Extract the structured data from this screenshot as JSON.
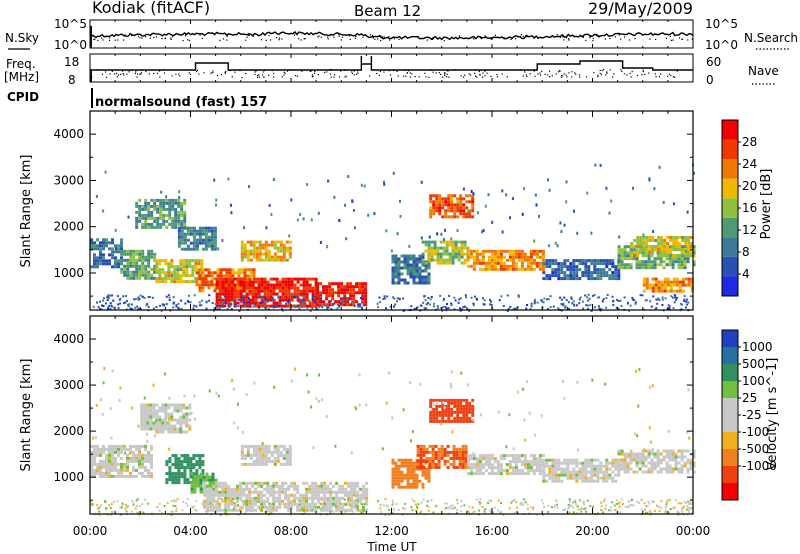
{
  "header": {
    "station": "Kodiak (fitACF)",
    "beam": "Beam 12",
    "date": "29/May/2009"
  },
  "labels": {
    "nsky": "N.Sky",
    "nsearch": "N.Search",
    "freq_line1": "Freq.",
    "freq_line2": "[MHz]",
    "nave": "Nave",
    "cpid": "CPID",
    "cpid_value": "normalsound (fast) 157"
  },
  "strip_ticks": {
    "noise_left": [
      "10^5",
      "10^0"
    ],
    "noise_right": [
      "10^5",
      "10^0"
    ],
    "freq_left": [
      "18",
      "8"
    ],
    "nave_right": [
      "60",
      "0"
    ]
  },
  "colors": {
    "power": [
      "#1f2ae0",
      "#2a50b8",
      "#3d7a9a",
      "#4f9a72",
      "#8fc040",
      "#f0b800",
      "#f07800",
      "#f03800",
      "#f00000"
    ],
    "velocity": [
      "#2040c0",
      "#2870a0",
      "#309060",
      "#70c040",
      "#c8c8c8",
      "#c8c8c8",
      "#f0b020",
      "#f08020",
      "#f04010",
      "#f00000"
    ]
  },
  "chart_data": [
    {
      "type": "heatmap",
      "name": "power",
      "ylabel": "Slant Range [km]",
      "yticks": [
        1000,
        2000,
        3000,
        4000
      ],
      "ylim": [
        200,
        4500
      ],
      "xlim": [
        0,
        24
      ],
      "colorbar": {
        "label": "Power [dB]",
        "ticks": [
          4,
          8,
          12,
          16,
          20,
          24,
          28
        ],
        "range": [
          0,
          32
        ]
      },
      "regions": [
        {
          "t": [
            0,
            1.2
          ],
          "r": [
            1150,
            1750
          ],
          "v": 8
        },
        {
          "t": [
            1.2,
            2.6
          ],
          "r": [
            900,
            1500
          ],
          "v": 13
        },
        {
          "t": [
            1.8,
            3.8
          ],
          "r": [
            2000,
            2600
          ],
          "v": 12
        },
        {
          "t": [
            2.6,
            4.5
          ],
          "r": [
            800,
            1300
          ],
          "v": 18
        },
        {
          "t": [
            4.2,
            6.5
          ],
          "r": [
            600,
            1100
          ],
          "v": 24
        },
        {
          "t": [
            5.0,
            9.0
          ],
          "r": [
            300,
            900
          ],
          "v": 29
        },
        {
          "t": [
            9.0,
            11.0
          ],
          "r": [
            300,
            800
          ],
          "v": 30
        },
        {
          "t": [
            6.0,
            8.0
          ],
          "r": [
            1300,
            1700
          ],
          "v": 20
        },
        {
          "t": [
            3.5,
            5.0
          ],
          "r": [
            1500,
            2000
          ],
          "v": 10
        },
        {
          "t": [
            12.0,
            13.5
          ],
          "r": [
            800,
            1400
          ],
          "v": 9
        },
        {
          "t": [
            13.2,
            15.0
          ],
          "r": [
            1200,
            1700
          ],
          "v": 16
        },
        {
          "t": [
            13.5,
            15.2
          ],
          "r": [
            2200,
            2700
          ],
          "v": 25
        },
        {
          "t": [
            15.0,
            18.0
          ],
          "r": [
            1100,
            1500
          ],
          "v": 22
        },
        {
          "t": [
            18.0,
            21.0
          ],
          "r": [
            900,
            1300
          ],
          "v": 7
        },
        {
          "t": [
            21.0,
            24.0
          ],
          "r": [
            1100,
            1600
          ],
          "v": 14
        },
        {
          "t": [
            22.0,
            24.0
          ],
          "r": [
            600,
            900
          ],
          "v": 22
        },
        {
          "t": [
            21.5,
            24.0
          ],
          "r": [
            1400,
            1800
          ],
          "v": 18
        }
      ]
    },
    {
      "type": "heatmap",
      "name": "velocity",
      "xlabel": "Time UT",
      "ylabel": "Slant Range [km]",
      "yticks": [
        1000,
        2000,
        3000,
        4000
      ],
      "ylim": [
        200,
        4500
      ],
      "xticks": [
        "00:00",
        "04:00",
        "08:00",
        "12:00",
        "16:00",
        "20:00",
        "00:00"
      ],
      "xlim": [
        0,
        24
      ],
      "colorbar": {
        "label": "Velocity [m s^-1]",
        "ticks": [
          "1000",
          "500",
          "100",
          "25",
          "-25",
          "-100",
          "-500",
          "-1000"
        ]
      },
      "regions": [
        {
          "t": [
            0,
            2.5
          ],
          "r": [
            1000,
            1700
          ],
          "v": 0
        },
        {
          "t": [
            2.0,
            4.0
          ],
          "r": [
            2000,
            2600
          ],
          "v": 0
        },
        {
          "t": [
            3.0,
            4.5
          ],
          "r": [
            900,
            1500
          ],
          "v": 300
        },
        {
          "t": [
            4.0,
            5.0
          ],
          "r": [
            700,
            1100
          ],
          "v": 80
        },
        {
          "t": [
            4.5,
            11.0
          ],
          "r": [
            300,
            900
          ],
          "v": 0
        },
        {
          "t": [
            6.0,
            8.0
          ],
          "r": [
            1300,
            1700
          ],
          "v": 0
        },
        {
          "t": [
            12.0,
            13.5
          ],
          "r": [
            800,
            1400
          ],
          "v": -150
        },
        {
          "t": [
            13.0,
            15.0
          ],
          "r": [
            1200,
            1700
          ],
          "v": -500
        },
        {
          "t": [
            13.5,
            15.2
          ],
          "r": [
            2200,
            2700
          ],
          "v": -600
        },
        {
          "t": [
            15.0,
            18.0
          ],
          "r": [
            1100,
            1500
          ],
          "v": 0
        },
        {
          "t": [
            18.0,
            21.0
          ],
          "r": [
            900,
            1400
          ],
          "v": 0
        },
        {
          "t": [
            21.0,
            24.0
          ],
          "r": [
            1100,
            1600
          ],
          "v": 0
        }
      ]
    }
  ]
}
